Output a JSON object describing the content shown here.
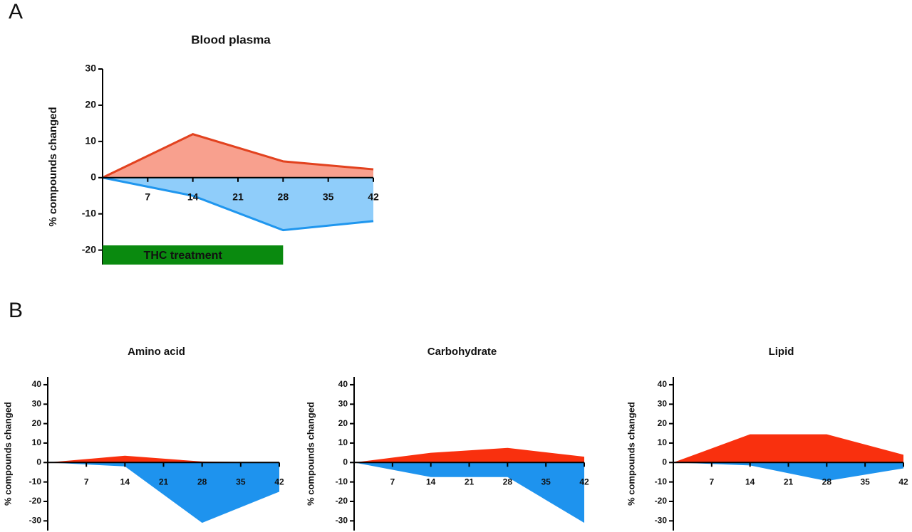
{
  "chart_data": [
    {
      "type": "area",
      "panel": "A",
      "title": "Blood plasma",
      "y_label": "% compounds changed",
      "x": [
        0,
        14,
        28,
        42
      ],
      "xlim": [
        0,
        42
      ],
      "xticks": [
        7,
        14,
        21,
        28,
        35,
        42
      ],
      "ylim": [
        -24,
        30
      ],
      "yticks": [
        -20,
        -10,
        0,
        10,
        20,
        30
      ],
      "outline": true,
      "series": [
        {
          "color": "#f8a08e",
          "line_color": "#e2421f",
          "values": [
            0,
            12,
            4.5,
            2.3
          ]
        },
        {
          "color": "#8fcdfa",
          "line_color": "#1f96ee",
          "values": [
            0,
            -5,
            -14.5,
            -12
          ]
        }
      ],
      "annotation": {
        "text": "THC treatment",
        "x": [
          0,
          28
        ],
        "color": "#0a8a0f"
      }
    },
    {
      "type": "area",
      "panel": "B",
      "title": "Amino acid",
      "y_label": "% compounds changed",
      "x": [
        0,
        14,
        28,
        42
      ],
      "xlim": [
        0,
        42
      ],
      "xticks": [
        7,
        14,
        21,
        28,
        35,
        42
      ],
      "ylim": [
        -35,
        44
      ],
      "yticks": [
        -30,
        -20,
        -10,
        0,
        10,
        20,
        30,
        40
      ],
      "outline": false,
      "series": [
        {
          "color": "#f9300e",
          "values": [
            0,
            3.5,
            0.5,
            0
          ]
        },
        {
          "color": "#1e93ee",
          "values": [
            0,
            -2,
            -31,
            -15
          ]
        }
      ]
    },
    {
      "type": "area",
      "title": "Carbohydrate",
      "y_label": "% compounds changed",
      "x": [
        0,
        14,
        28,
        42
      ],
      "xlim": [
        0,
        42
      ],
      "xticks": [
        7,
        14,
        21,
        28,
        35,
        42
      ],
      "ylim": [
        -35,
        44
      ],
      "yticks": [
        -30,
        -20,
        -10,
        0,
        10,
        20,
        30,
        40
      ],
      "outline": false,
      "series": [
        {
          "color": "#f9300e",
          "values": [
            0,
            5,
            7.5,
            3
          ]
        },
        {
          "color": "#1e93ee",
          "values": [
            0,
            -7.5,
            -7.5,
            -31
          ]
        }
      ]
    },
    {
      "type": "area",
      "title": "Lipid",
      "y_label": "% compounds changed",
      "x": [
        0,
        14,
        28,
        42
      ],
      "xlim": [
        0,
        42
      ],
      "xticks": [
        7,
        14,
        21,
        28,
        35,
        42
      ],
      "ylim": [
        -35,
        44
      ],
      "yticks": [
        -30,
        -20,
        -10,
        0,
        10,
        20,
        30,
        40
      ],
      "outline": false,
      "series": [
        {
          "color": "#f9300e",
          "values": [
            0,
            14.5,
            14.5,
            4
          ]
        },
        {
          "color": "#1e93ee",
          "values": [
            0,
            -1.5,
            -9.5,
            -3
          ]
        }
      ]
    }
  ]
}
